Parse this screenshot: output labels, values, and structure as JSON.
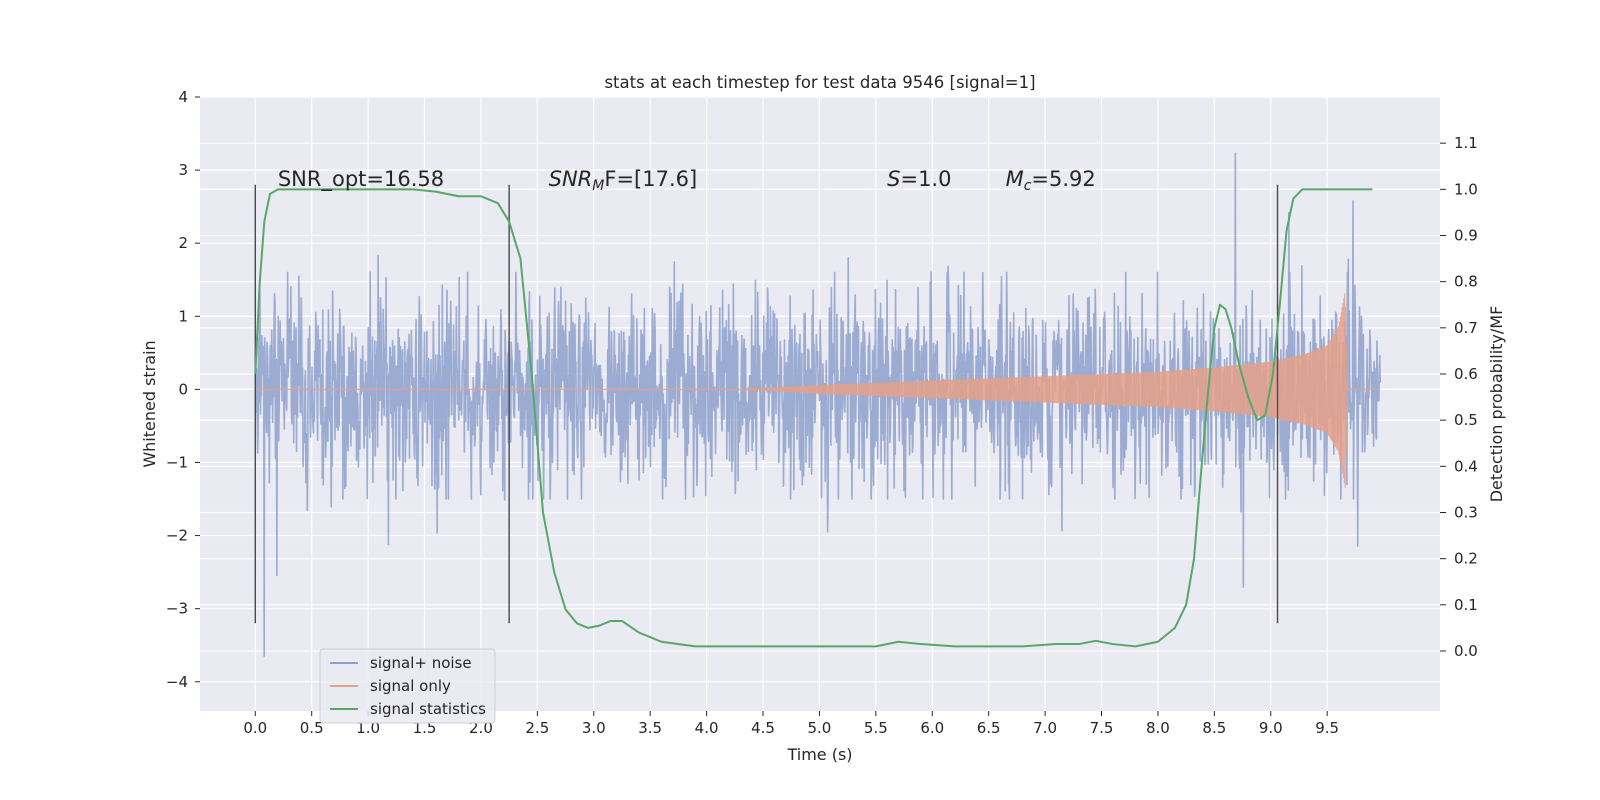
{
  "chart_data": {
    "type": "line",
    "title": "stats at each timestep for test data 9546 [signal=1]",
    "xlabel": "Time (s)",
    "ylabel": "Whitened strain",
    "ylabel_right": "Detection probability/MF",
    "xlim": [
      -0.49,
      10.5
    ],
    "ylim": [
      -4.4,
      4.0
    ],
    "ylim_right": [
      -0.13,
      1.2
    ],
    "x_ticks": [
      0.0,
      0.5,
      1.0,
      1.5,
      2.0,
      2.5,
      3.0,
      3.5,
      4.0,
      4.5,
      5.0,
      5.5,
      6.0,
      6.5,
      7.0,
      7.5,
      8.0,
      8.5,
      9.0,
      9.5
    ],
    "x_tick_labels": [
      "0.0",
      "0.5",
      "1.0",
      "1.5",
      "2.0",
      "2.5",
      "3.0",
      "3.5",
      "4.0",
      "4.5",
      "5.0",
      "5.5",
      "6.0",
      "6.5",
      "7.0",
      "7.5",
      "8.0",
      "8.5",
      "9.0",
      "9.5"
    ],
    "y_ticks": [
      4,
      3,
      2,
      1,
      0,
      -1,
      -2,
      -3,
      -4
    ],
    "y_tick_labels": [
      "4",
      "3",
      "2",
      "1",
      "0",
      "−1",
      "−2",
      "−3",
      "−4"
    ],
    "y2_ticks": [
      1.1,
      1.0,
      0.9,
      0.8,
      0.7,
      0.6,
      0.5,
      0.4,
      0.3,
      0.2,
      0.1,
      0.0
    ],
    "y2_tick_labels": [
      "1.1",
      "1.0",
      "0.9",
      "0.8",
      "0.7",
      "0.6",
      "0.5",
      "0.4",
      "0.3",
      "0.2",
      "0.1",
      "0.0"
    ],
    "grid": true,
    "legend_position": "lower-left",
    "legend": [
      {
        "label": "signal+ noise",
        "color": "#8da0cb"
      },
      {
        "label": "signal only",
        "color": "#e5a088"
      },
      {
        "label": "signal statistics",
        "color": "#55a868"
      }
    ],
    "annotations": [
      {
        "text": "SNR_opt=16.58",
        "x": 0.2,
        "y": 2.78
      },
      {
        "text_italic": "SNR",
        "text_sub": "M",
        "text_rest": "F=[17.6]",
        "x": 2.6,
        "y": 2.78
      },
      {
        "text_italic": "S",
        "text_rest": "=1.0",
        "x": 5.6,
        "y": 2.78
      },
      {
        "text_italic": "M",
        "text_sub": "c",
        "text_rest": "=5.92",
        "x": 6.65,
        "y": 2.78
      }
    ],
    "vertical_lines": [
      {
        "x": 0.0,
        "y_range": [
          -3.2,
          2.8
        ]
      },
      {
        "x": 2.25,
        "y_range": [
          -3.2,
          2.8
        ]
      },
      {
        "x": 9.06,
        "y_range": [
          -3.2,
          2.8
        ]
      }
    ],
    "series": [
      {
        "name": "signal+ noise",
        "kind": "noise",
        "x_range": [
          0.0,
          9.97
        ],
        "typical_envelope": [
          -1.5,
          1.6
        ],
        "spike_range": [
          -3.65,
          3.62
        ]
      },
      {
        "name": "signal only",
        "kind": "chirp",
        "x_range": [
          0.0,
          9.97
        ],
        "amplitude_points": [
          [
            4.3,
            0.0
          ],
          [
            5.0,
            0.06
          ],
          [
            6.0,
            0.12
          ],
          [
            7.0,
            0.18
          ],
          [
            8.0,
            0.24
          ],
          [
            8.5,
            0.3
          ],
          [
            9.0,
            0.38
          ],
          [
            9.3,
            0.48
          ],
          [
            9.5,
            0.6
          ],
          [
            9.6,
            0.85
          ],
          [
            9.66,
            1.35
          ],
          [
            9.68,
            0.0
          ]
        ]
      },
      {
        "name": "signal statistics",
        "axis": "right",
        "x": [
          0.0,
          0.04,
          0.08,
          0.13,
          0.2,
          0.35,
          0.6,
          1.0,
          1.4,
          1.6,
          1.8,
          2.0,
          2.15,
          2.25,
          2.35,
          2.45,
          2.55,
          2.65,
          2.75,
          2.85,
          2.95,
          3.05,
          3.15,
          3.25,
          3.4,
          3.6,
          3.9,
          4.3,
          4.8,
          5.2,
          5.5,
          5.7,
          5.9,
          6.2,
          6.5,
          6.8,
          7.1,
          7.3,
          7.45,
          7.6,
          7.8,
          8.0,
          8.15,
          8.25,
          8.32,
          8.38,
          8.44,
          8.5,
          8.55,
          8.6,
          8.65,
          8.72,
          8.8,
          8.88,
          8.95,
          9.02,
          9.08,
          9.14,
          9.2,
          9.28,
          9.38,
          9.5,
          9.7,
          9.9
        ],
        "y": [
          0.6,
          0.8,
          0.93,
          0.99,
          1.0,
          1.0,
          1.0,
          1.0,
          1.0,
          0.995,
          0.985,
          0.985,
          0.97,
          0.93,
          0.85,
          0.6,
          0.3,
          0.17,
          0.09,
          0.06,
          0.05,
          0.055,
          0.065,
          0.065,
          0.04,
          0.02,
          0.01,
          0.01,
          0.01,
          0.01,
          0.01,
          0.02,
          0.015,
          0.01,
          0.01,
          0.01,
          0.015,
          0.015,
          0.022,
          0.015,
          0.01,
          0.02,
          0.05,
          0.1,
          0.2,
          0.38,
          0.55,
          0.7,
          0.75,
          0.74,
          0.7,
          0.62,
          0.55,
          0.5,
          0.51,
          0.6,
          0.75,
          0.91,
          0.98,
          1.0,
          1.0,
          1.0,
          1.0,
          1.0
        ]
      }
    ]
  }
}
